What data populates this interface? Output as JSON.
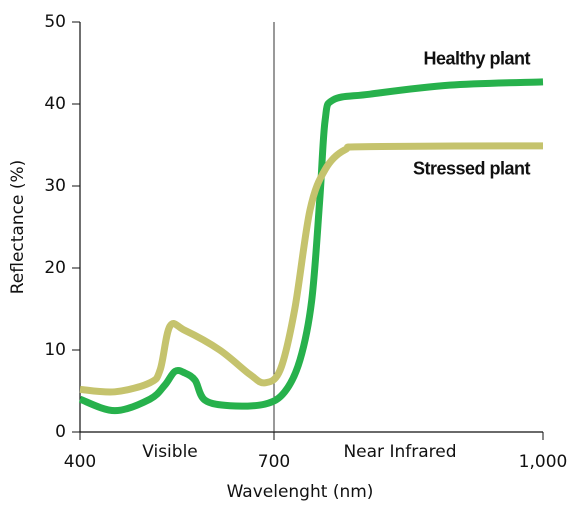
{
  "chart_data": {
    "type": "line",
    "xlabel": "Wavelenght (nm)",
    "ylabel": "Reflectance (%)",
    "annotations": [
      "Visible",
      "Near Infrared"
    ],
    "vline": 700,
    "xlim": [
      400,
      1000
    ],
    "xticks": [
      400,
      700,
      {
        "value": 1000,
        "label": "1,000"
      }
    ],
    "ylim": [
      0,
      50
    ],
    "yticks": [
      0,
      10,
      20,
      30,
      40,
      50
    ],
    "series": [
      {
        "name": "Healthy plant",
        "color": "#27b14c",
        "x": [
          400,
          454,
          508,
          531,
          547,
          562,
          578,
          593,
          632,
          686,
          712,
          729,
          742,
          751,
          757,
          766,
          807,
          896,
          1000
        ],
        "values": [
          4.0,
          2.6,
          4.0,
          5.7,
          7.4,
          7.2,
          6.3,
          3.9,
          3.2,
          3.4,
          4.9,
          8.8,
          16,
          28.3,
          38,
          40.5,
          41.2,
          42.3,
          42.7
        ]
      },
      {
        "name": "Stressed plant",
        "color": "#c5c36d",
        "x": [
          400,
          454,
          508,
          524,
          539,
          562,
          616,
          663,
          686,
          707,
          723,
          740,
          757,
          779,
          807,
          1000
        ],
        "values": [
          5.2,
          4.9,
          6.0,
          7.6,
          12.9,
          12.4,
          10.0,
          7.0,
          6.0,
          7.6,
          14.9,
          27,
          32,
          34.4,
          34.8,
          34.9
        ]
      }
    ]
  }
}
